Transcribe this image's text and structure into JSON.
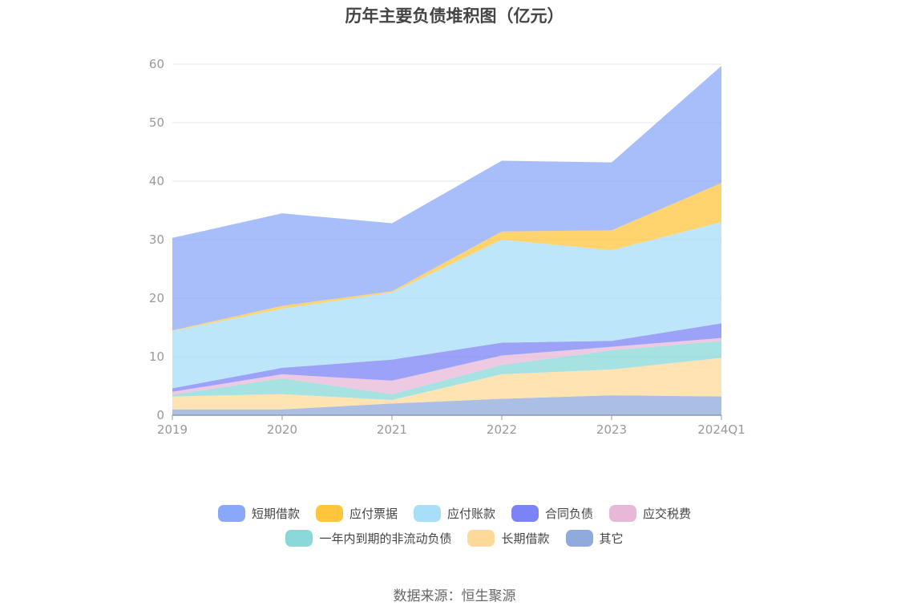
{
  "chart_data": {
    "type": "area",
    "stacked": true,
    "title": "历年主要负债堆积图（亿元）",
    "categories": [
      "2019",
      "2020",
      "2021",
      "2022",
      "2023",
      "2024Q1"
    ],
    "ylim": [
      0,
      60
    ],
    "yticks": [
      0,
      10,
      20,
      30,
      40,
      50,
      60
    ],
    "xlabel": "",
    "ylabel": "",
    "grid": true,
    "legend_position": "bottom",
    "series": [
      {
        "name": "其它",
        "color": "#8faadc",
        "values": [
          1.0,
          1.0,
          2.0,
          2.8,
          3.4,
          3.2
        ]
      },
      {
        "name": "长期借款",
        "color": "#ffd99a",
        "values": [
          2.2,
          2.6,
          0.6,
          4.2,
          4.4,
          6.6
        ]
      },
      {
        "name": "一年内到期的非流动负债",
        "color": "#8ad8d8",
        "values": [
          0.3,
          2.7,
          1.0,
          1.6,
          3.3,
          2.9
        ]
      },
      {
        "name": "应交税费",
        "color": "#e8b8d8",
        "values": [
          0.5,
          0.7,
          2.3,
          1.6,
          0.6,
          0.5
        ]
      },
      {
        "name": "合同负债",
        "color": "#7b83f5",
        "values": [
          0.6,
          1.1,
          3.6,
          2.2,
          1.0,
          2.5
        ]
      },
      {
        "name": "应付账款",
        "color": "#a8def8",
        "values": [
          9.8,
          10.1,
          11.5,
          17.6,
          15.5,
          17.3
        ]
      },
      {
        "name": "应付票据",
        "color": "#ffc53d",
        "values": [
          0.1,
          0.5,
          0.2,
          1.4,
          3.4,
          6.7
        ]
      },
      {
        "name": "短期借款",
        "color": "#8aa8fa",
        "values": [
          15.8,
          15.8,
          11.6,
          12.1,
          11.6,
          20.0
        ]
      }
    ]
  },
  "legend": {
    "row1": [
      {
        "label": "短期借款",
        "color": "#8aa8fa"
      },
      {
        "label": "应付票据",
        "color": "#ffc53d"
      },
      {
        "label": "应付账款",
        "color": "#a8def8"
      },
      {
        "label": "合同负债",
        "color": "#7b83f5"
      },
      {
        "label": "应交税费",
        "color": "#e8b8d8"
      }
    ],
    "row2": [
      {
        "label": "一年内到期的非流动负债",
        "color": "#8ad8d8"
      },
      {
        "label": "长期借款",
        "color": "#ffd99a"
      },
      {
        "label": "其它",
        "color": "#8faadc"
      }
    ]
  },
  "source": "数据来源：恒生聚源"
}
